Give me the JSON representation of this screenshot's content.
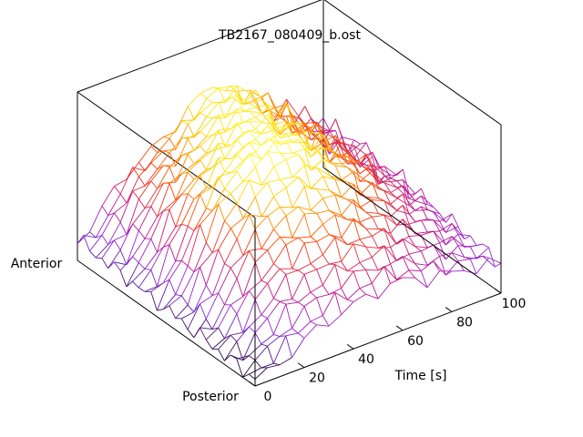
{
  "chart_data": {
    "type": "surface",
    "title": "TB2167_080409_b.ost",
    "xlabel": "Time [s]",
    "y_labels": {
      "near": "Posterior",
      "far": "Anterior"
    },
    "x_ticks": [
      "0",
      "20",
      "40",
      "60",
      "80",
      "100"
    ],
    "xlim": [
      0,
      100
    ],
    "x": [
      0,
      5,
      10,
      15,
      20,
      25,
      30,
      35,
      40,
      45,
      50,
      55,
      60,
      65,
      70,
      75,
      80,
      85,
      90,
      95,
      100
    ],
    "rows": 30,
    "rows_posterior_to_anterior": true,
    "z_range": [
      0,
      1
    ],
    "grid": false,
    "colormap": [
      "#000000",
      "#8a2be2",
      "#c71585",
      "#ff4500",
      "#ffd700",
      "#ffff40"
    ],
    "z_profile": {
      "posterior": [
        0.05,
        0.06,
        0.1,
        0.14,
        0.2,
        0.24,
        0.27,
        0.3,
        0.32,
        0.34,
        0.35,
        0.37,
        0.36,
        0.34,
        0.3,
        0.3,
        0.28,
        0.27,
        0.26,
        0.24,
        0.22
      ],
      "middle": [
        0.1,
        0.18,
        0.35,
        0.55,
        0.72,
        0.82,
        0.9,
        0.95,
        0.98,
        1.0,
        0.97,
        0.92,
        0.86,
        0.8,
        0.74,
        0.68,
        0.6,
        0.52,
        0.45,
        0.38,
        0.3
      ],
      "anterior": [
        0.15,
        0.2,
        0.3,
        0.42,
        0.5,
        0.55,
        0.6,
        0.66,
        0.72,
        0.8,
        0.86,
        0.9,
        0.88,
        0.82,
        0.74,
        0.66,
        0.58,
        0.5,
        0.44,
        0.38,
        0.32
      ]
    }
  }
}
